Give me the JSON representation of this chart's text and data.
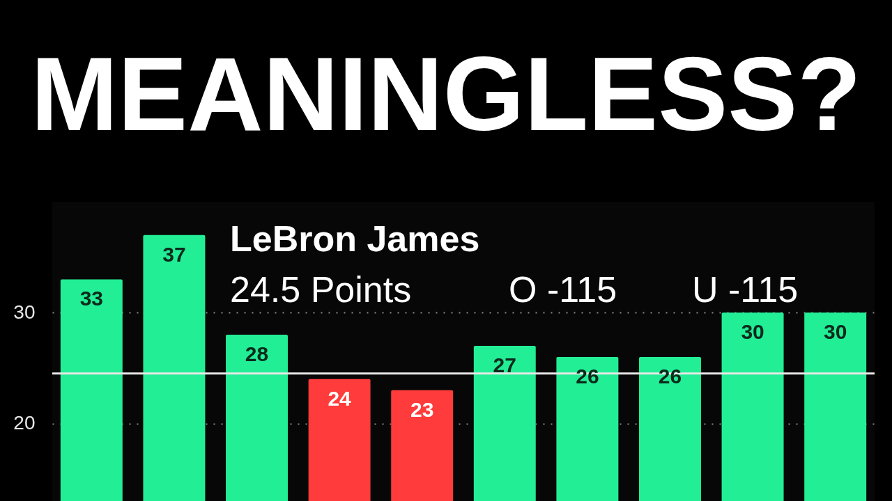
{
  "chart_data": {
    "type": "bar",
    "title": "MEANINGLESS?",
    "annotations": [
      "LeBron James",
      "24.5 Points",
      "O -115",
      "U -115"
    ],
    "categories": [
      null,
      null,
      null,
      null,
      null,
      null,
      null,
      null,
      null,
      null
    ],
    "values": [
      33,
      37,
      28,
      24,
      23,
      27,
      26,
      26,
      30,
      30
    ],
    "colors": [
      "#22ee96",
      "#22ee96",
      "#22ee96",
      "#ff3b3b",
      "#ff3b3b",
      "#22ee96",
      "#22ee96",
      "#22ee96",
      "#22ee96",
      "#22ee96"
    ],
    "ylim": [
      13,
      40
    ],
    "yticks": [
      20,
      30
    ],
    "grid": "y",
    "tick_labels": "y",
    "data_labels": true,
    "ref_lines": [
      {
        "axis": "y",
        "value": 24.5,
        "color": "#e8e8e8"
      }
    ]
  }
}
